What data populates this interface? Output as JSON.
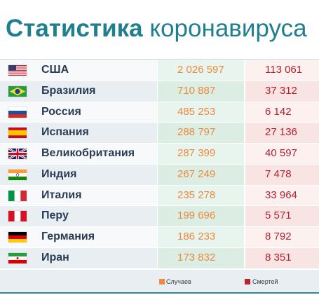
{
  "colors": {
    "title": "#1f7f8e",
    "country": "#2a3d55",
    "cases": "#ec8a3c",
    "deaths": "#b8202f"
  },
  "chart_data": {
    "type": "table",
    "title_bold": "Статистика",
    "title_rest": "коронавируса",
    "rows": [
      {
        "flag": "flag-usa-icon",
        "country": "США",
        "cases": "2 026 597",
        "deaths": "113 061"
      },
      {
        "flag": "flag-brazil-icon",
        "country": "Бразилия",
        "cases": "710 887",
        "deaths": "37 312"
      },
      {
        "flag": "flag-russia-icon",
        "country": "Россия",
        "cases": "485 253",
        "deaths": "6 142"
      },
      {
        "flag": "flag-spain-icon",
        "country": "Испания",
        "cases": "288 797",
        "deaths": "27 136"
      },
      {
        "flag": "flag-uk-icon",
        "country": "Великобритания",
        "cases": "287 399",
        "deaths": "40 597"
      },
      {
        "flag": "flag-india-icon",
        "country": "Индия",
        "cases": "267 249",
        "deaths": "7 478"
      },
      {
        "flag": "flag-italy-icon",
        "country": "Италия",
        "cases": "235 278",
        "deaths": "33 964"
      },
      {
        "flag": "flag-peru-icon",
        "country": "Перу",
        "cases": "199 696",
        "deaths": "5 571"
      },
      {
        "flag": "flag-germany-icon",
        "country": "Германия",
        "cases": "186 233",
        "deaths": "8 792"
      },
      {
        "flag": "flag-iran-icon",
        "country": "Иран",
        "cases": "173 832",
        "deaths": "8 351"
      }
    ],
    "legend": [
      {
        "label": "Случаев",
        "color": "#f08a3c"
      },
      {
        "label": "Смертей",
        "color": "#c0202e"
      }
    ]
  }
}
